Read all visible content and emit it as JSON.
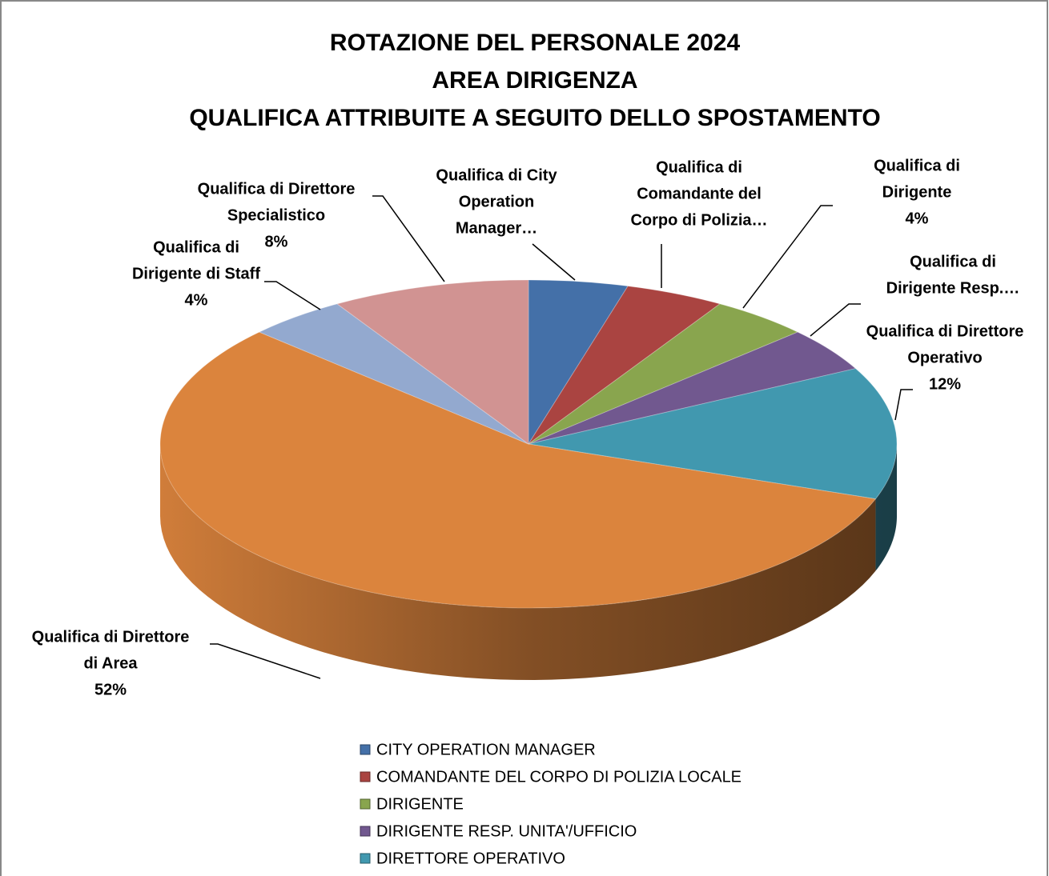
{
  "chart_data": {
    "type": "pie",
    "title": [
      "ROTAZIONE DEL PERSONALE 2024",
      "AREA DIRIGENZA",
      "QUALIFICA ATTRIBUITE A SEGUITO DELLO SPOSTAMENTO"
    ],
    "categories": [
      "CITY OPERATION MANAGER",
      "COMANDANTE DEL CORPO DI POLIZIA LOCALE",
      "DIRIGENTE",
      "DIRIGENTE RESP. UNITA'/UFFICIO",
      "DIRETTORE OPERATIVO",
      null,
      null,
      null
    ],
    "labels": [
      [
        "Qualifica di City",
        "Operation",
        "Manager…"
      ],
      [
        "Qualifica di",
        "Comandante del",
        "Corpo di Polizia…"
      ],
      [
        "Qualifica di",
        "Dirigente"
      ],
      [
        "Qualifica di",
        "Dirigente Resp.…"
      ],
      [
        "Qualifica di Direttore",
        "Operativo"
      ],
      [
        "Qualifica di Direttore",
        "di  Area"
      ],
      [
        "Qualifica di",
        "Dirigente di Staff"
      ],
      [
        "Qualifica di Direttore",
        "Specialistico"
      ]
    ],
    "values": [
      4,
      4,
      4,
      4,
      12,
      52,
      4,
      8
    ],
    "value_labels": [
      null,
      null,
      "4%",
      null,
      "12%",
      "52%",
      "4%",
      "8%"
    ],
    "colors": [
      "#4470a8",
      "#aa4441",
      "#89a54e",
      "#71588f",
      "#4198af",
      "#db843d",
      "#93a9cf",
      "#d19392"
    ],
    "legend": "bottom"
  }
}
